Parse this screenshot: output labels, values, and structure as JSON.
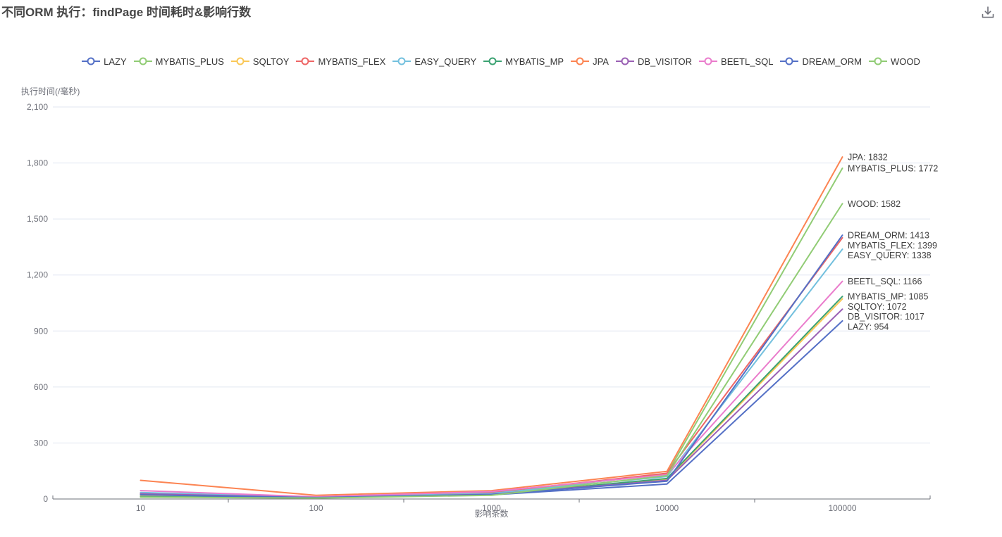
{
  "header": {
    "toolbox_icon": "download-icon"
  },
  "chart_data": {
    "type": "line",
    "title": "不同ORM 执行：findPage 时间耗时&影响行数",
    "xlabel": "影响条数",
    "ylabel": "执行时间(/毫秒)",
    "x_axis_type": "category",
    "x_categories": [
      "10",
      "100",
      "1000",
      "10000",
      "100000"
    ],
    "ylim": [
      0,
      2100
    ],
    "ytick_step": 300,
    "ytick_labels": [
      "0",
      "300",
      "600",
      "900",
      "1,200",
      "1,500",
      "1,800",
      "2,100"
    ],
    "grid": true,
    "legend_position": "top",
    "series": [
      {
        "name": "LAZY",
        "color": "#5470c6",
        "values": [
          25,
          8,
          22,
          80,
          954
        ],
        "end_label": "LAZY: 954"
      },
      {
        "name": "MYBATIS_PLUS",
        "color": "#91cc75",
        "values": [
          15,
          6,
          28,
          135,
          1772
        ],
        "end_label": "MYBATIS_PLUS: 1772"
      },
      {
        "name": "SQLTOY",
        "color": "#fac858",
        "values": [
          20,
          7,
          25,
          105,
          1072
        ],
        "end_label": "SQLTOY: 1072"
      },
      {
        "name": "MYBATIS_FLEX",
        "color": "#ee6666",
        "values": [
          30,
          10,
          35,
          138,
          1399
        ],
        "end_label": "MYBATIS_FLEX: 1399"
      },
      {
        "name": "EASY_QUERY",
        "color": "#73c0de",
        "values": [
          35,
          10,
          30,
          120,
          1338
        ],
        "end_label": "EASY_QUERY: 1338"
      },
      {
        "name": "MYBATIS_MP",
        "color": "#3ba272",
        "values": [
          12,
          6,
          22,
          110,
          1085
        ],
        "end_label": "MYBATIS_MP: 1085"
      },
      {
        "name": "JPA",
        "color": "#fc8452",
        "values": [
          100,
          20,
          45,
          148,
          1832
        ],
        "end_label": "JPA: 1832"
      },
      {
        "name": "DB_VISITOR",
        "color": "#9a60b4",
        "values": [
          28,
          8,
          25,
          100,
          1017
        ],
        "end_label": "DB_VISITOR: 1017"
      },
      {
        "name": "BEETL_SQL",
        "color": "#ea7ccc",
        "values": [
          45,
          12,
          40,
          130,
          1166
        ],
        "end_label": "BEETL_SQL: 1166"
      },
      {
        "name": "DREAM_ORM",
        "color": "#5470c6",
        "values": [
          22,
          8,
          24,
          95,
          1413
        ],
        "end_label": "DREAM_ORM: 1413"
      },
      {
        "name": "WOOD",
        "color": "#91cc75",
        "values": [
          10,
          5,
          20,
          125,
          1582
        ],
        "end_label": "WOOD: 1582"
      }
    ],
    "style": {
      "grid_line_color": "#E0E6F1",
      "axis_line_color": "#6E7079",
      "axis_text_color": "#6E7079",
      "end_label_color": "#404040",
      "title_color": "#464646",
      "legend_text_color": "#333333"
    }
  }
}
